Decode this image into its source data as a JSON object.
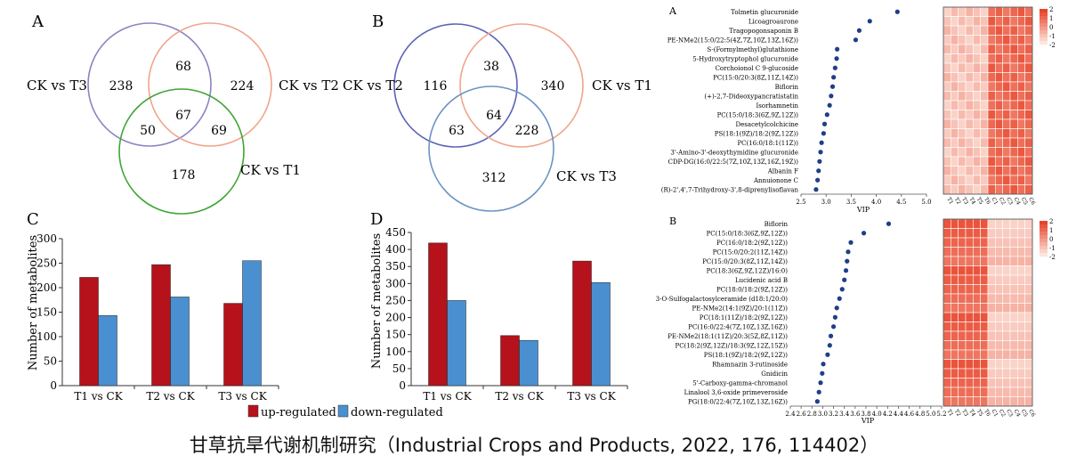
{
  "caption": "甘草抗旱代谢机制研究（Industrial Crops and Products, 2022, 176, 114402）",
  "colors": {
    "up": "#b5121b",
    "down": "#4a90d0",
    "heat_dark": "#e8442a",
    "heat_light": "#fde6dd"
  },
  "chart_data": [
    {
      "type": "venn",
      "panel": "A",
      "sets": [
        {
          "name": "CK vs T3",
          "color": "#8a84c2"
        },
        {
          "name": "CK vs T2",
          "color": "#f0a58c"
        },
        {
          "name": "CK vs T1",
          "color": "#3fa535"
        }
      ],
      "regions": {
        "only_T3": 238,
        "only_T2": 224,
        "only_T1": 178,
        "T3_T2": 68,
        "T3_T1": 50,
        "T2_T1": 69,
        "all": 67
      }
    },
    {
      "type": "venn",
      "panel": "B",
      "sets": [
        {
          "name": "CK vs T2",
          "color": "#5c64b5"
        },
        {
          "name": "CK vs T1",
          "color": "#f0a58c"
        },
        {
          "name": "CK vs T3",
          "color": "#6a94c2"
        }
      ],
      "regions": {
        "only_T2": 116,
        "only_T1": 340,
        "only_T3": 312,
        "T2_T1": 38,
        "T2_T3": 63,
        "T1_T3": 228,
        "all": 64
      }
    },
    {
      "type": "bar",
      "panel": "C",
      "categories": [
        "T1 vs CK",
        "T2 vs CK",
        "T3 vs CK"
      ],
      "series": [
        {
          "name": "up-regulated",
          "values": [
            221,
            247,
            168
          ]
        },
        {
          "name": "down-regulated",
          "values": [
            143,
            181,
            255
          ]
        }
      ],
      "ylabel": "Number of metabolites",
      "ylim": [
        0,
        300
      ],
      "yticks": [
        0,
        50,
        100,
        150,
        200,
        250,
        300
      ]
    },
    {
      "type": "bar",
      "panel": "D",
      "categories": [
        "T1 vs CK",
        "T2 vs CK",
        "T3 vs CK"
      ],
      "series": [
        {
          "name": "up-regulated",
          "values": [
            419,
            147,
            366
          ]
        },
        {
          "name": "down-regulated",
          "values": [
            250,
            133,
            303
          ]
        }
      ],
      "ylabel": "Number of metabolites",
      "ylim": [
        0,
        450
      ],
      "yticks": [
        0,
        50,
        100,
        150,
        200,
        250,
        300,
        350,
        400,
        450
      ]
    },
    {
      "type": "scatter",
      "panel": "A",
      "xlabel": "VIP",
      "xlim": [
        2.5,
        5.0
      ],
      "xticks": [
        "2.5",
        "3.0",
        "3.5",
        "4.0",
        "4.5",
        "5.0"
      ],
      "xtick_values": [
        2.5,
        3.0,
        3.5,
        4.0,
        4.5,
        5.0
      ],
      "names": [
        "Tolmetin glucuronide",
        "Licoagroaurone",
        "Tragopogonsaponin B",
        "PE-NMe2(15:0/22:5(4Z,7Z,10Z,13Z,16Z))",
        "S-(Formylmethyl)glutathione",
        "5-Hydroxytryptophol glucuronide",
        "Corchoionol C 9-glucoside",
        "PC(15:0/20:3(8Z,11Z,14Z))",
        "Biflorin",
        "(+)-2,7-Dideoxypancratistatin",
        "Isorhamnetin",
        "PC(15:0/18:3(6Z,9Z,12Z))",
        "Desacetylcolchicine",
        "PS(18:1(9Z)/18:2(9Z,12Z))",
        "PC(16:0/18:1(11Z))",
        "3'-Amino-3'-deoxythymidine glucuronide",
        "CDP-DG(16:0/22:5(7Z,10Z,13Z,16Z,19Z))",
        "Albanin F",
        "Annuionone C",
        "(R)-2',4',7-Trihydroxy-3',8-diprenylisoflavan"
      ],
      "vip": [
        4.42,
        3.87,
        3.66,
        3.59,
        3.22,
        3.21,
        3.18,
        3.15,
        3.13,
        3.1,
        3.07,
        3.02,
        2.97,
        2.95,
        2.91,
        2.89,
        2.87,
        2.85,
        2.83,
        2.8
      ]
    },
    {
      "type": "scatter",
      "panel": "B",
      "xlabel": "VIP",
      "xlim": [
        2.4,
        5.2
      ],
      "xticks": [
        "2.4",
        "2.6",
        "2.8",
        "3.0",
        "3.2",
        "3.4",
        "3.6",
        "3.8",
        "4.0",
        "4.2",
        "4.4",
        "4.6",
        "4.8",
        "5.0",
        "5.2"
      ],
      "xtick_values": [
        2.4,
        2.6,
        2.8,
        3.0,
        3.2,
        3.4,
        3.6,
        3.8,
        4.0,
        4.2,
        4.4,
        4.6,
        4.8,
        5.0,
        5.2
      ],
      "names": [
        "Biflorin",
        "PC(15:0/18:3(6Z,9Z,12Z))",
        "PC(16:0/18:2(9Z,12Z))",
        "PC(15:0/20:2(11Z,14Z))",
        "PC(15:0/20:3(8Z,11Z,14Z))",
        "PC(18:3(6Z,9Z,12Z)/16:0)",
        "Lucidenic acid B",
        "PC(18:0/18:2(9Z,12Z))",
        "3-O-Sulfogalactosylceramide (d18:1/20:0)",
        "PE-NMe2(14:1(9Z)/20:1(11Z))",
        "PC(18:1(11Z)/18:2(9Z,12Z))",
        "PC(16:0/22:4(7Z,10Z,13Z,16Z))",
        "PE-NMe2(18:1(11Z)/20:3(5Z,8Z,11Z))",
        "PC(18:2(9Z,12Z)/18:3(9Z,12Z,15Z))",
        "PS(18:1(9Z)/18:2(9Z,12Z))",
        "Rhamnazin 3-rutinoside",
        "Gnidicin",
        "5'-Carboxy-gamma-chromanol",
        "Linalool 3,6-oxide primeveroside",
        "PG(18:0/22:4(7Z,10Z,13Z,16Z))"
      ],
      "vip": [
        4.22,
        3.76,
        3.52,
        3.47,
        3.45,
        3.43,
        3.4,
        3.36,
        3.31,
        3.26,
        3.23,
        3.2,
        3.15,
        3.13,
        3.09,
        3.01,
        2.99,
        2.96,
        2.93,
        2.9
      ]
    },
    {
      "type": "heatmap",
      "panel": "A",
      "legend_ticks": [
        "2",
        "1",
        "0",
        "-1",
        "-2"
      ],
      "columns": [
        "T1",
        "T2",
        "T3",
        "T4",
        "T5",
        "T6",
        "C1",
        "C2",
        "C3",
        "C4",
        "C5",
        "C6"
      ],
      "rows": 20
    },
    {
      "type": "heatmap",
      "panel": "B",
      "legend_ticks": [
        "2",
        "1",
        "0",
        "-1",
        "-2"
      ],
      "columns": [
        "T1",
        "T2",
        "T3",
        "T4",
        "T5",
        "T6",
        "C1",
        "C2",
        "C3",
        "C4",
        "C5",
        "C6"
      ],
      "rows": 20
    }
  ]
}
